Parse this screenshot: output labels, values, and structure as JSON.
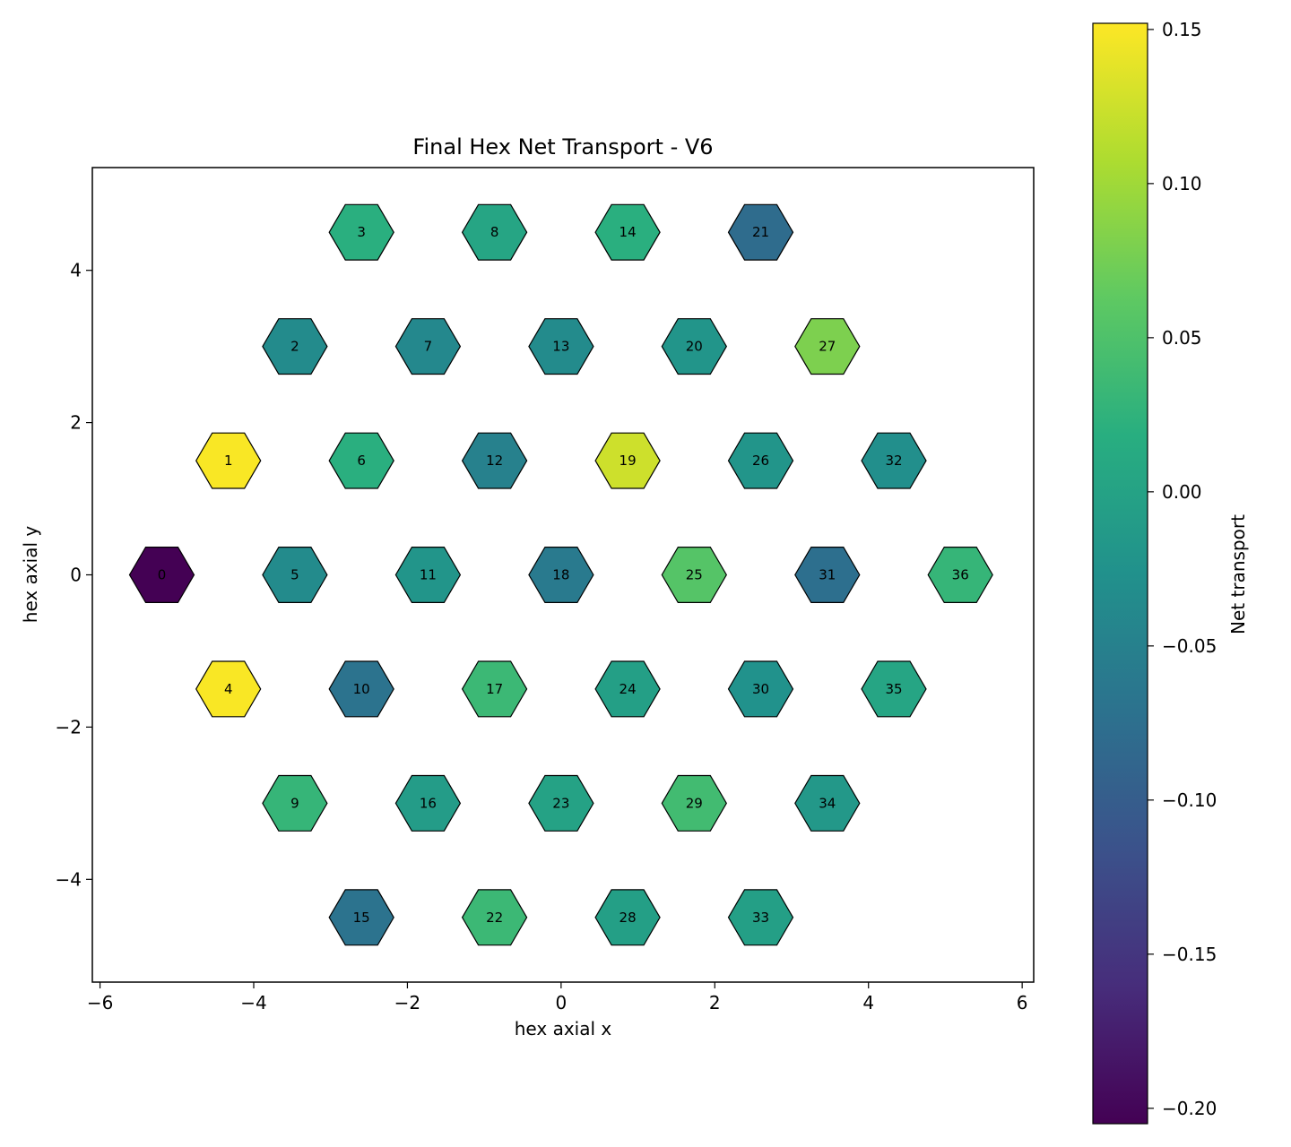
{
  "chart_data": {
    "type": "heatmap",
    "title": "Final Hex Net Transport - V6",
    "xlabel": "hex axial x",
    "ylabel": "hex axial y",
    "xlim": [
      -6.1,
      6.15
    ],
    "ylim": [
      -5.35,
      5.35
    ],
    "xticks": [
      {
        "value": -6,
        "label": "−6"
      },
      {
        "value": -4,
        "label": "−4"
      },
      {
        "value": -2,
        "label": "−2"
      },
      {
        "value": 0,
        "label": "0"
      },
      {
        "value": 2,
        "label": "2"
      },
      {
        "value": 4,
        "label": "4"
      },
      {
        "value": 6,
        "label": "6"
      }
    ],
    "yticks": [
      {
        "value": 4,
        "label": "4"
      },
      {
        "value": 2,
        "label": "2"
      },
      {
        "value": 0,
        "label": "0"
      },
      {
        "value": -2,
        "label": "−2"
      },
      {
        "value": -4,
        "label": "−4"
      }
    ],
    "colorbar": {
      "label": "Net transport",
      "colormap": "viridis",
      "range": [
        -0.205,
        0.152
      ],
      "ticks": [
        {
          "value": 0.15,
          "label": "0.15"
        },
        {
          "value": 0.1,
          "label": "0.10"
        },
        {
          "value": 0.05,
          "label": "0.05"
        },
        {
          "value": 0.0,
          "label": "0.00"
        },
        {
          "value": -0.05,
          "label": "−0.05"
        },
        {
          "value": -0.1,
          "label": "−0.10"
        },
        {
          "value": -0.15,
          "label": "−0.15"
        },
        {
          "value": -0.2,
          "label": "−0.20"
        }
      ]
    },
    "cells": [
      {
        "id": "0",
        "x": -5.196,
        "y": 0.0,
        "value": -0.205
      },
      {
        "id": "1",
        "x": -4.33,
        "y": 1.5,
        "value": 0.15
      },
      {
        "id": "2",
        "x": -3.464,
        "y": 3.0,
        "value": -0.035
      },
      {
        "id": "3",
        "x": -2.598,
        "y": 4.5,
        "value": 0.02
      },
      {
        "id": "4",
        "x": -4.33,
        "y": -1.5,
        "value": 0.15
      },
      {
        "id": "5",
        "x": -3.464,
        "y": 0.0,
        "value": -0.035
      },
      {
        "id": "6",
        "x": -2.598,
        "y": 1.5,
        "value": 0.02
      },
      {
        "id": "7",
        "x": -1.732,
        "y": 3.0,
        "value": -0.04
      },
      {
        "id": "8",
        "x": -0.866,
        "y": 4.5,
        "value": 0.005
      },
      {
        "id": "9",
        "x": -3.464,
        "y": -3.0,
        "value": 0.03
      },
      {
        "id": "10",
        "x": -2.598,
        "y": -1.5,
        "value": -0.07
      },
      {
        "id": "11",
        "x": -1.732,
        "y": 0.0,
        "value": -0.02
      },
      {
        "id": "12",
        "x": -0.866,
        "y": 1.5,
        "value": -0.05
      },
      {
        "id": "13",
        "x": 0.0,
        "y": 3.0,
        "value": -0.035
      },
      {
        "id": "14",
        "x": 0.866,
        "y": 4.5,
        "value": 0.02
      },
      {
        "id": "15",
        "x": -2.598,
        "y": -4.5,
        "value": -0.07
      },
      {
        "id": "16",
        "x": -1.732,
        "y": -3.0,
        "value": -0.01
      },
      {
        "id": "17",
        "x": -0.866,
        "y": -1.5,
        "value": 0.035
      },
      {
        "id": "18",
        "x": 0.0,
        "y": 0.0,
        "value": -0.06
      },
      {
        "id": "19",
        "x": 0.866,
        "y": 1.5,
        "value": 0.125
      },
      {
        "id": "20",
        "x": 1.732,
        "y": 3.0,
        "value": -0.02
      },
      {
        "id": "21",
        "x": 2.598,
        "y": 4.5,
        "value": -0.08
      },
      {
        "id": "22",
        "x": -0.866,
        "y": -4.5,
        "value": 0.035
      },
      {
        "id": "23",
        "x": 0.0,
        "y": -3.0,
        "value": 0.0
      },
      {
        "id": "24",
        "x": 0.866,
        "y": -1.5,
        "value": -0.005
      },
      {
        "id": "25",
        "x": 1.732,
        "y": 0.0,
        "value": 0.055
      },
      {
        "id": "26",
        "x": 2.598,
        "y": 1.5,
        "value": -0.02
      },
      {
        "id": "27",
        "x": 3.464,
        "y": 3.0,
        "value": 0.08
      },
      {
        "id": "28",
        "x": 0.866,
        "y": -4.5,
        "value": -0.005
      },
      {
        "id": "29",
        "x": 1.732,
        "y": -3.0,
        "value": 0.04
      },
      {
        "id": "30",
        "x": 2.598,
        "y": -1.5,
        "value": -0.025
      },
      {
        "id": "31",
        "x": 3.464,
        "y": 0.0,
        "value": -0.075
      },
      {
        "id": "32",
        "x": 4.33,
        "y": 1.5,
        "value": -0.03
      },
      {
        "id": "33",
        "x": 2.598,
        "y": -4.5,
        "value": -0.005
      },
      {
        "id": "34",
        "x": 3.464,
        "y": -3.0,
        "value": -0.015
      },
      {
        "id": "35",
        "x": 4.33,
        "y": -1.5,
        "value": 0.005
      },
      {
        "id": "36",
        "x": 5.196,
        "y": 0.0,
        "value": 0.03
      }
    ]
  }
}
